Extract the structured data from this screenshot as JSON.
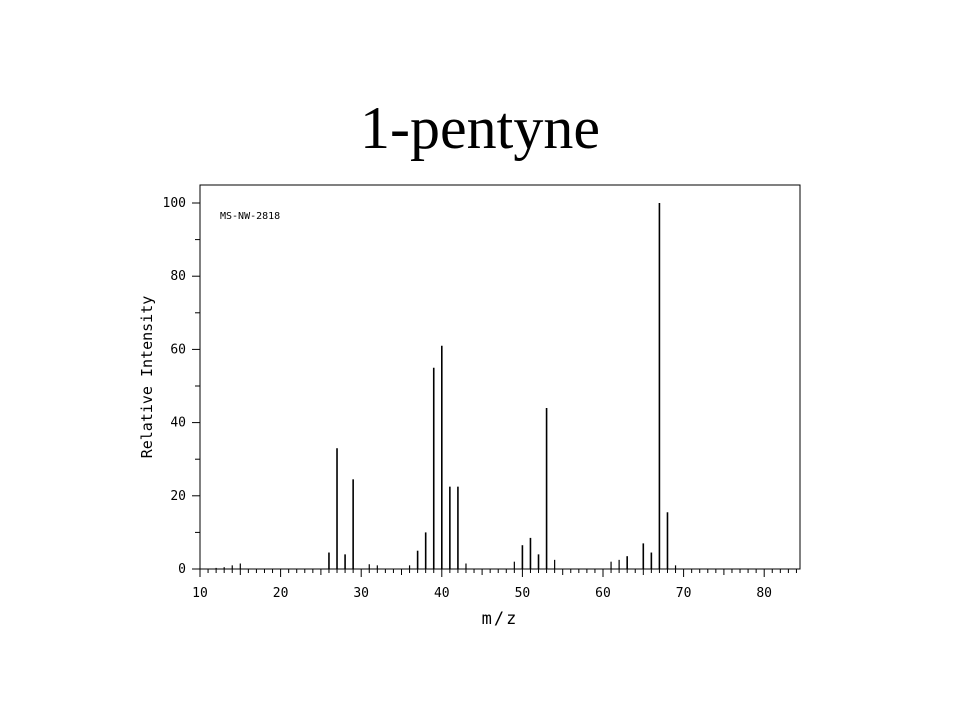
{
  "title": "1-pentyne",
  "chart_data": {
    "type": "bar",
    "title": "1-pentyne",
    "annotation": "MS-NW-2818",
    "xlabel": "m/z",
    "ylabel": "Relative Intensity",
    "xlim": [
      10,
      85
    ],
    "ylim": [
      0,
      105
    ],
    "x_ticks": [
      10,
      20,
      30,
      40,
      50,
      60,
      70,
      80
    ],
    "y_ticks": [
      0,
      20,
      40,
      60,
      80,
      100
    ],
    "x_tick_labels": [
      "10",
      "20",
      "30",
      "40",
      "50",
      "60",
      "70",
      "80"
    ],
    "y_tick_labels": [
      "0",
      "20",
      "40",
      "60",
      "80",
      "100"
    ],
    "grid": false,
    "peaks": [
      {
        "mz": 12,
        "intensity": 0.3
      },
      {
        "mz": 13,
        "intensity": 0.5
      },
      {
        "mz": 14,
        "intensity": 1.0
      },
      {
        "mz": 15,
        "intensity": 1.5
      },
      {
        "mz": 26,
        "intensity": 4.5
      },
      {
        "mz": 27,
        "intensity": 33.0
      },
      {
        "mz": 28,
        "intensity": 4.0
      },
      {
        "mz": 29,
        "intensity": 24.5
      },
      {
        "mz": 31,
        "intensity": 1.3
      },
      {
        "mz": 32,
        "intensity": 1.0
      },
      {
        "mz": 36,
        "intensity": 1.0
      },
      {
        "mz": 37,
        "intensity": 5.0
      },
      {
        "mz": 38,
        "intensity": 10.0
      },
      {
        "mz": 39,
        "intensity": 55.0
      },
      {
        "mz": 40,
        "intensity": 61.0
      },
      {
        "mz": 41,
        "intensity": 22.5
      },
      {
        "mz": 42,
        "intensity": 22.5
      },
      {
        "mz": 43,
        "intensity": 1.5
      },
      {
        "mz": 49,
        "intensity": 2.0
      },
      {
        "mz": 50,
        "intensity": 6.5
      },
      {
        "mz": 51,
        "intensity": 8.5
      },
      {
        "mz": 52,
        "intensity": 4.0
      },
      {
        "mz": 53,
        "intensity": 44.0
      },
      {
        "mz": 54,
        "intensity": 2.5
      },
      {
        "mz": 61,
        "intensity": 2.0
      },
      {
        "mz": 62,
        "intensity": 2.5
      },
      {
        "mz": 63,
        "intensity": 3.5
      },
      {
        "mz": 65,
        "intensity": 7.0
      },
      {
        "mz": 66,
        "intensity": 4.5
      },
      {
        "mz": 67,
        "intensity": 100.0
      },
      {
        "mz": 68,
        "intensity": 15.5
      },
      {
        "mz": 69,
        "intensity": 1.0
      }
    ]
  }
}
